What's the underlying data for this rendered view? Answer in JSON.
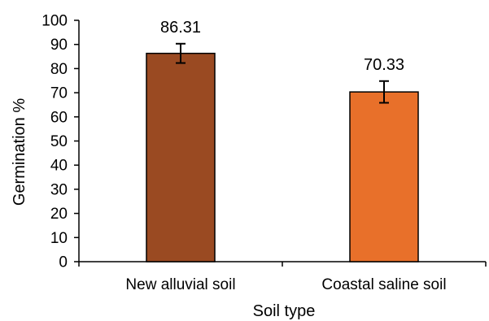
{
  "chart_data": {
    "type": "bar",
    "categories": [
      "New alluvial soil",
      "Coastal saline soil"
    ],
    "values": [
      86.31,
      70.33
    ],
    "errors": [
      4.0,
      4.5
    ],
    "data_labels": [
      "86.31",
      "70.33"
    ],
    "bar_colors": [
      "#9a4a22",
      "#e8702a"
    ],
    "bar_outline_color": "#000000",
    "error_bar_color": "#000000",
    "title": "",
    "xlabel": "Soil type",
    "ylabel": "Germination %",
    "ylim": [
      0,
      100
    ],
    "ytick_step": 10,
    "yticks": [
      "0",
      "10",
      "20",
      "30",
      "40",
      "50",
      "60",
      "70",
      "80",
      "90",
      "100"
    ],
    "grid": false,
    "legend": "none"
  }
}
